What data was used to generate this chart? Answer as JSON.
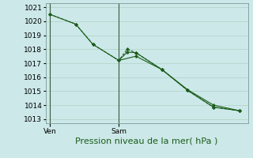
{
  "bg_color": "#cce8e8",
  "grid_color": "#b8d8d0",
  "line_color": "#1a5c1a",
  "marker_color": "#1a5c1a",
  "vline_color": "#3a5a3a",
  "xlabel": "Pression niveau de la mer( hPa )",
  "xlabel_fontsize": 8,
  "yticks": [
    1013,
    1014,
    1015,
    1016,
    1017,
    1018,
    1019,
    1020,
    1021
  ],
  "ylim": [
    1012.7,
    1021.3
  ],
  "xtick_labels": [
    "Ven",
    "Sam"
  ],
  "xtick_positions": [
    0,
    8
  ],
  "vline_ven": 0,
  "vline_sam": 8,
  "series1_x": [
    0,
    3,
    5,
    8,
    9,
    10,
    13,
    16,
    19,
    22
  ],
  "series1_y": [
    1020.5,
    1019.8,
    1018.35,
    1017.2,
    1017.8,
    1017.75,
    1016.55,
    1015.1,
    1014.0,
    1013.6
  ],
  "series2_x": [
    0,
    3,
    5,
    8,
    9,
    10,
    13,
    16,
    19,
    22
  ],
  "series2_y": [
    1020.5,
    1019.8,
    1018.35,
    1017.2,
    1018.0,
    1017.75,
    1016.55,
    1015.05,
    1013.85,
    1013.6
  ],
  "series3_x": [
    8,
    10,
    13,
    16,
    19,
    22
  ],
  "series3_y": [
    1017.2,
    1017.5,
    1016.55,
    1015.05,
    1013.85,
    1013.6
  ],
  "xlim": [
    -0.5,
    23
  ]
}
